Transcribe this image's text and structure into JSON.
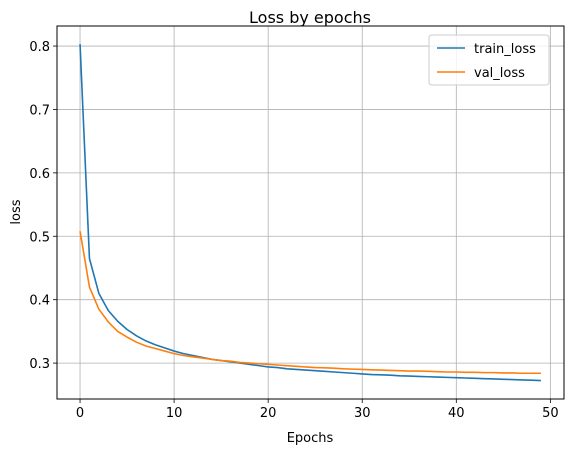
{
  "chart_data": {
    "type": "line",
    "title": "Loss by epochs",
    "xlabel": "Epochs",
    "ylabel": "loss",
    "xlim": [
      -2.45,
      51.45
    ],
    "ylim": [
      0.2434,
      0.8316
    ],
    "xticks": [
      0,
      10,
      20,
      30,
      40,
      50
    ],
    "yticks": [
      0.3,
      0.4,
      0.5,
      0.6,
      0.7,
      0.8
    ],
    "xtick_labels": [
      "0",
      "10",
      "20",
      "30",
      "40",
      "50"
    ],
    "ytick_labels": [
      "0.3",
      "0.4",
      "0.5",
      "0.6",
      "0.7",
      "0.8"
    ],
    "grid": true,
    "legend_position": "top-right",
    "x": [
      0,
      1,
      2,
      3,
      4,
      5,
      6,
      7,
      8,
      9,
      10,
      11,
      12,
      13,
      14,
      15,
      16,
      17,
      18,
      19,
      20,
      21,
      22,
      23,
      24,
      25,
      26,
      27,
      28,
      29,
      30,
      31,
      32,
      33,
      34,
      35,
      36,
      37,
      38,
      39,
      40,
      41,
      42,
      43,
      44,
      45,
      46,
      47,
      48,
      49
    ],
    "series": [
      {
        "name": "train_loss",
        "color": "#1f77b4",
        "values": [
          0.803,
          0.465,
          0.41,
          0.383,
          0.366,
          0.353,
          0.343,
          0.335,
          0.329,
          0.324,
          0.319,
          0.315,
          0.312,
          0.309,
          0.306,
          0.304,
          0.302,
          0.3,
          0.298,
          0.296,
          0.294,
          0.293,
          0.291,
          0.29,
          0.289,
          0.288,
          0.287,
          0.286,
          0.285,
          0.284,
          0.283,
          0.282,
          0.2815,
          0.281,
          0.28,
          0.2795,
          0.279,
          0.2785,
          0.278,
          0.2775,
          0.277,
          0.2765,
          0.276,
          0.2755,
          0.275,
          0.2745,
          0.274,
          0.2735,
          0.273,
          0.2725
        ]
      },
      {
        "name": "val_loss",
        "color": "#ff7f0e",
        "values": [
          0.508,
          0.42,
          0.385,
          0.365,
          0.35,
          0.341,
          0.333,
          0.327,
          0.323,
          0.319,
          0.315,
          0.312,
          0.31,
          0.308,
          0.306,
          0.304,
          0.303,
          0.301,
          0.3,
          0.299,
          0.298,
          0.297,
          0.296,
          0.295,
          0.294,
          0.293,
          0.2925,
          0.292,
          0.291,
          0.2905,
          0.29,
          0.2895,
          0.289,
          0.2885,
          0.288,
          0.2875,
          0.2875,
          0.287,
          0.2865,
          0.286,
          0.286,
          0.2855,
          0.2855,
          0.285,
          0.285,
          0.2845,
          0.2845,
          0.284,
          0.284,
          0.284
        ]
      }
    ]
  }
}
